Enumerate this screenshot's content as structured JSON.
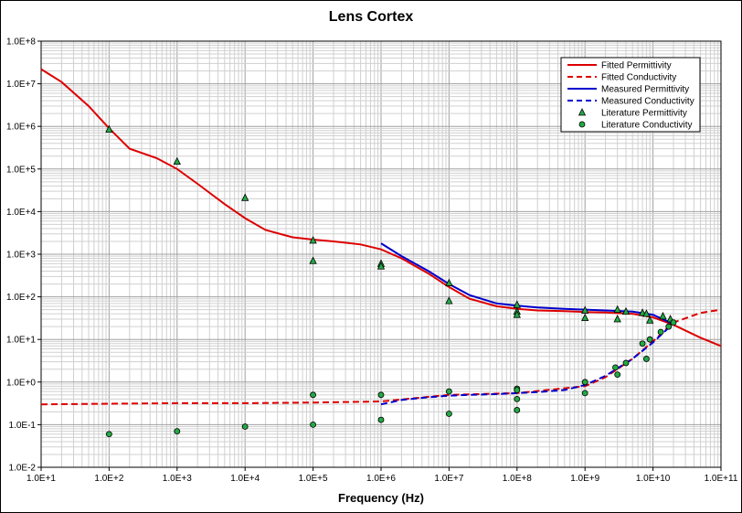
{
  "chart_data": {
    "type": "line",
    "title": "Lens Cortex",
    "xlabel": "Frequency (Hz)",
    "ylabel": "",
    "x_scale": "log",
    "y_scale": "log",
    "xlim": [
      10,
      100000000000
    ],
    "ylim": [
      0.01,
      100000000
    ],
    "grid": true,
    "legend_position": "top-right",
    "x_ticks": [
      "1.0E+1",
      "1.0E+2",
      "1.0E+3",
      "1.0E+4",
      "1.0E+5",
      "1.0E+6",
      "1.0E+7",
      "1.0E+8",
      "1.0E+9",
      "1.0E+10",
      "1.0E+11"
    ],
    "y_ticks": [
      "1.0E-2",
      "1.0E-1",
      "1.0E+0",
      "1.0E+1",
      "1.0E+2",
      "1.0E+3",
      "1.0E+4",
      "1.0E+5",
      "1.0E+6",
      "1.0E+7",
      "1.0E+8"
    ],
    "series": [
      {
        "name": "Fitted Permittivity",
        "style": "solid",
        "color": "#dd0000",
        "x": [
          10,
          20,
          50,
          100,
          200,
          500,
          1000,
          2000,
          5000,
          10000,
          20000,
          50000,
          100000,
          200000,
          500000,
          1000000,
          2000000,
          5000000,
          10000000,
          20000000,
          50000000,
          100000000,
          200000000,
          500000000,
          1000000000,
          2000000000,
          5000000000,
          10000000000,
          20000000000,
          50000000000,
          100000000000
        ],
        "y": [
          22000000,
          11000000,
          3000000,
          900000,
          300000,
          180000,
          100000,
          45000,
          15000,
          7000,
          3700,
          2500,
          2200,
          2000,
          1700,
          1300,
          800,
          350,
          170,
          90,
          60,
          52,
          48,
          46,
          44,
          43,
          40,
          33,
          22,
          11,
          7
        ]
      },
      {
        "name": "Fitted Conductivity",
        "style": "dashed",
        "color": "#dd0000",
        "x": [
          10,
          100,
          1000,
          10000,
          100000,
          1000000,
          10000000,
          100000000,
          1000000000,
          2000000000,
          5000000000,
          10000000000,
          20000000000,
          50000000000,
          100000000000
        ],
        "y": [
          0.3,
          0.31,
          0.32,
          0.32,
          0.33,
          0.35,
          0.5,
          0.55,
          0.8,
          1.3,
          3.5,
          9,
          25,
          42,
          50
        ]
      },
      {
        "name": "Measured Permittivity",
        "style": "solid",
        "color": "#0000cc",
        "x": [
          1000000,
          2000000,
          5000000,
          10000000,
          20000000,
          50000000,
          100000000,
          200000000,
          500000000,
          1000000000,
          2000000000,
          5000000000,
          10000000000,
          20000000000
        ],
        "y": [
          1800,
          900,
          400,
          200,
          110,
          70,
          62,
          56,
          52,
          50,
          48,
          45,
          38,
          23
        ]
      },
      {
        "name": "Measured Conductivity",
        "style": "dashed",
        "color": "#0000cc",
        "x": [
          1000000,
          2000000,
          5000000,
          10000000,
          20000000,
          50000000,
          100000000,
          200000000,
          500000000,
          1000000000,
          2000000000,
          5000000000,
          10000000000,
          20000000000
        ],
        "y": [
          0.3,
          0.38,
          0.44,
          0.48,
          0.5,
          0.52,
          0.55,
          0.58,
          0.65,
          0.85,
          1.4,
          3.5,
          8.5,
          24
        ]
      },
      {
        "name": "Literature Permittivity",
        "style": "marker-triangle",
        "color": "#22aa44",
        "x": [
          100,
          1000,
          10000,
          100000,
          100000,
          1000000,
          1000000,
          10000000,
          10000000,
          100000000,
          100000000,
          100000000,
          1000000000,
          1000000000,
          3000000000,
          3000000000,
          4000000000,
          7000000000,
          8000000000,
          9000000000,
          14000000000,
          18000000000
        ],
        "y": [
          850000,
          150000,
          21000,
          2100,
          700,
          600,
          520,
          210,
          80,
          65,
          45,
          38,
          48,
          32,
          50,
          30,
          45,
          42,
          40,
          28,
          35,
          30
        ]
      },
      {
        "name": "Literature Conductivity",
        "style": "marker-circle",
        "color": "#22aa44",
        "x": [
          100,
          1000,
          10000,
          100000,
          100000,
          1000000,
          1000000,
          10000000,
          10000000,
          100000000,
          100000000,
          100000000,
          100000000,
          1000000000,
          1000000000,
          2800000000,
          3000000000,
          4000000000,
          7000000000,
          8000000000,
          9000000000,
          13000000000,
          17000000000,
          20000000000
        ],
        "y": [
          0.06,
          0.07,
          0.09,
          0.1,
          0.5,
          0.5,
          0.13,
          0.6,
          0.18,
          0.7,
          0.65,
          0.4,
          0.22,
          1.0,
          0.55,
          2.2,
          1.5,
          2.8,
          8,
          3.5,
          10,
          15,
          20,
          25
        ]
      }
    ]
  }
}
